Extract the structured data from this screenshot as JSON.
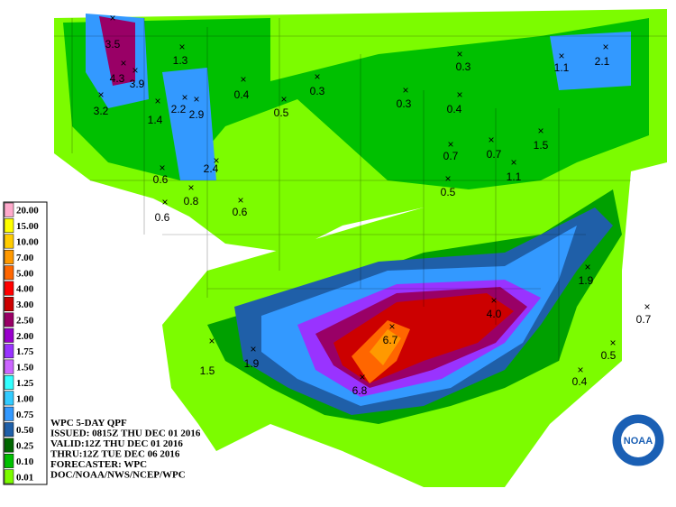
{
  "legend": {
    "items": [
      "20.00",
      "15.00",
      "10.00",
      "7.00",
      "5.00",
      "4.00",
      "3.00",
      "2.50",
      "2.00",
      "1.75",
      "1.50",
      "1.25",
      "1.00",
      "0.75",
      "0.50",
      "0.25",
      "0.10",
      "0.01"
    ]
  },
  "header": {
    "lines": [
      "WPC 5-DAY QPF",
      "ISSUED: 0815Z THU DEC 01 2016",
      "VALID:12Z THU DEC 01 2016",
      "THRU:12Z TUE DEC 06 2016",
      "FORECASTER: WPC",
      "DOC/NOAA/NWS/NCEP/WPC"
    ]
  },
  "maxima": [
    "3.5",
    "4.3",
    "3.9",
    "3.2",
    "1.3",
    "1.4",
    "2.2",
    "2.9",
    "0.4",
    "0.5",
    "0.3",
    "0.3",
    "0.3",
    "0.4",
    "2.4",
    "0.6",
    "0.8",
    "0.6",
    "0.6",
    "0.7",
    "0.7",
    "0.5",
    "1.1",
    "1.5",
    "1.1",
    "2.1",
    "1.9",
    "0.7",
    "4.0",
    "6.7",
    "6.8",
    "1.5",
    "1.9",
    "0.5",
    "0.4"
  ],
  "logo": "NOAA"
}
